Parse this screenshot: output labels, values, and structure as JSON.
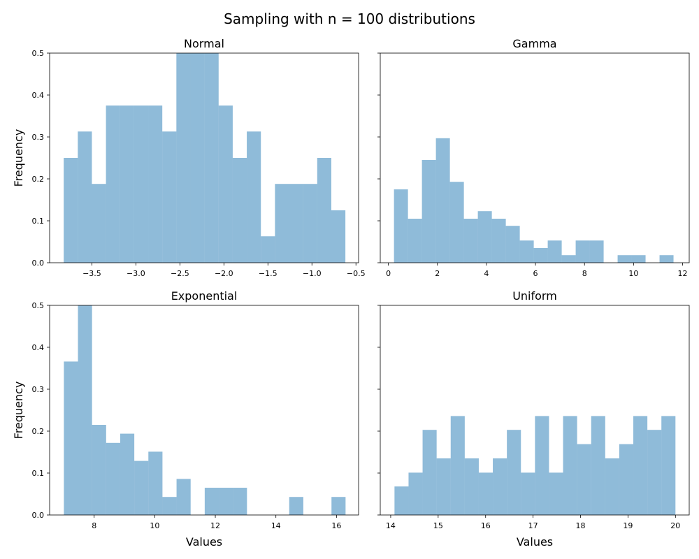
{
  "figure": {
    "suptitle": "Sampling with n = 100 distributions"
  },
  "chart_data": [
    {
      "type": "bar",
      "title": "Normal",
      "xlabel": "",
      "ylabel": "Frequency",
      "bar_color": "#1f77b4",
      "bar_opacity": 0.5,
      "xlim": [
        -3.98,
        -0.47
      ],
      "ylim": [
        0,
        0.5
      ],
      "xticks": [
        -3.5,
        -3.0,
        -2.5,
        -2.0,
        -1.5,
        -1.0,
        -0.5
      ],
      "xtick_labels": [
        "−3.5",
        "−3.0",
        "−2.5",
        "−2.0",
        "−1.5",
        "−1.0",
        "−0.5"
      ],
      "yticks": [
        0.0,
        0.1,
        0.2,
        0.3,
        0.4,
        0.5
      ],
      "ytick_labels": [
        "0.0",
        "0.1",
        "0.2",
        "0.3",
        "0.4",
        "0.5"
      ],
      "bin_edges": [
        -3.82,
        -3.66,
        -3.5,
        -3.34,
        -3.18,
        -3.02,
        -2.86,
        -2.7,
        -2.54,
        -2.38,
        -2.22,
        -2.06,
        -1.9,
        -1.74,
        -1.58,
        -1.42,
        -1.26,
        -1.1,
        -0.94,
        -0.78,
        -0.62
      ],
      "values": [
        0.25,
        0.313,
        0.188,
        0.375,
        0.375,
        0.375,
        0.375,
        0.313,
        0.5,
        0.5,
        0.5,
        0.375,
        0.25,
        0.313,
        0.063,
        0.188,
        0.188,
        0.188,
        0.25,
        0.125
      ]
    },
    {
      "type": "bar",
      "title": "Gamma",
      "xlabel": "",
      "ylabel": "",
      "bar_color": "#1f77b4",
      "bar_opacity": 0.5,
      "xlim": [
        -0.33,
        12.27
      ],
      "ylim": [
        0,
        0.5
      ],
      "xticks": [
        0,
        2,
        4,
        6,
        8,
        10,
        12
      ],
      "xtick_labels": [
        "0",
        "2",
        "4",
        "6",
        "8",
        "10",
        "12"
      ],
      "yticks": [
        0.0,
        0.1,
        0.2,
        0.3,
        0.4,
        0.5
      ],
      "ytick_labels": [],
      "bin_edges": [
        0.23,
        0.8,
        1.37,
        1.94,
        2.51,
        3.08,
        3.65,
        4.22,
        4.79,
        5.36,
        5.93,
        6.5,
        7.07,
        7.64,
        8.21,
        8.78,
        9.35,
        9.92,
        10.49,
        11.06,
        11.63
      ],
      "values": [
        0.175,
        0.105,
        0.245,
        0.297,
        0.193,
        0.105,
        0.123,
        0.105,
        0.088,
        0.053,
        0.035,
        0.053,
        0.018,
        0.053,
        0.053,
        0.0,
        0.018,
        0.018,
        0.0,
        0.018
      ]
    },
    {
      "type": "bar",
      "title": "Exponential",
      "xlabel": "Values",
      "ylabel": "Frequency",
      "bar_color": "#1f77b4",
      "bar_opacity": 0.5,
      "xlim": [
        6.53,
        16.73
      ],
      "ylim": [
        0,
        0.5
      ],
      "xticks": [
        8,
        10,
        12,
        14,
        16
      ],
      "xtick_labels": [
        "8",
        "10",
        "12",
        "14",
        "16"
      ],
      "yticks": [
        0.0,
        0.1,
        0.2,
        0.3,
        0.4,
        0.5
      ],
      "ytick_labels": [
        "0.0",
        "0.1",
        "0.2",
        "0.3",
        "0.4",
        "0.5"
      ],
      "bin_edges": [
        7.0,
        7.465,
        7.93,
        8.395,
        8.86,
        9.325,
        9.79,
        10.255,
        10.72,
        11.185,
        11.65,
        12.115,
        12.58,
        13.045,
        13.51,
        13.975,
        14.44,
        14.905,
        15.37,
        15.835,
        16.3
      ],
      "values": [
        0.366,
        0.5,
        0.215,
        0.172,
        0.194,
        0.129,
        0.151,
        0.043,
        0.086,
        0.0,
        0.065,
        0.065,
        0.065,
        0.0,
        0.0,
        0.0,
        0.043,
        0.0,
        0.0,
        0.043
      ]
    },
    {
      "type": "bar",
      "title": "Uniform",
      "xlabel": "Values",
      "ylabel": "",
      "bar_color": "#1f77b4",
      "bar_opacity": 0.5,
      "xlim": [
        13.78,
        20.29
      ],
      "ylim": [
        0,
        0.5
      ],
      "xticks": [
        14,
        15,
        16,
        17,
        18,
        19,
        20
      ],
      "xtick_labels": [
        "14",
        "15",
        "16",
        "17",
        "18",
        "19",
        "20"
      ],
      "yticks": [
        0.0,
        0.1,
        0.2,
        0.3,
        0.4,
        0.5
      ],
      "ytick_labels": [],
      "bin_edges": [
        14.08,
        14.376,
        14.672,
        14.968,
        15.264,
        15.56,
        15.856,
        16.152,
        16.448,
        16.744,
        17.04,
        17.336,
        17.632,
        17.928,
        18.224,
        18.52,
        18.816,
        19.112,
        19.408,
        19.704,
        20.0
      ],
      "values": [
        0.068,
        0.101,
        0.203,
        0.135,
        0.236,
        0.135,
        0.101,
        0.135,
        0.203,
        0.101,
        0.236,
        0.101,
        0.236,
        0.169,
        0.236,
        0.135,
        0.169,
        0.236,
        0.203,
        0.236
      ]
    }
  ]
}
